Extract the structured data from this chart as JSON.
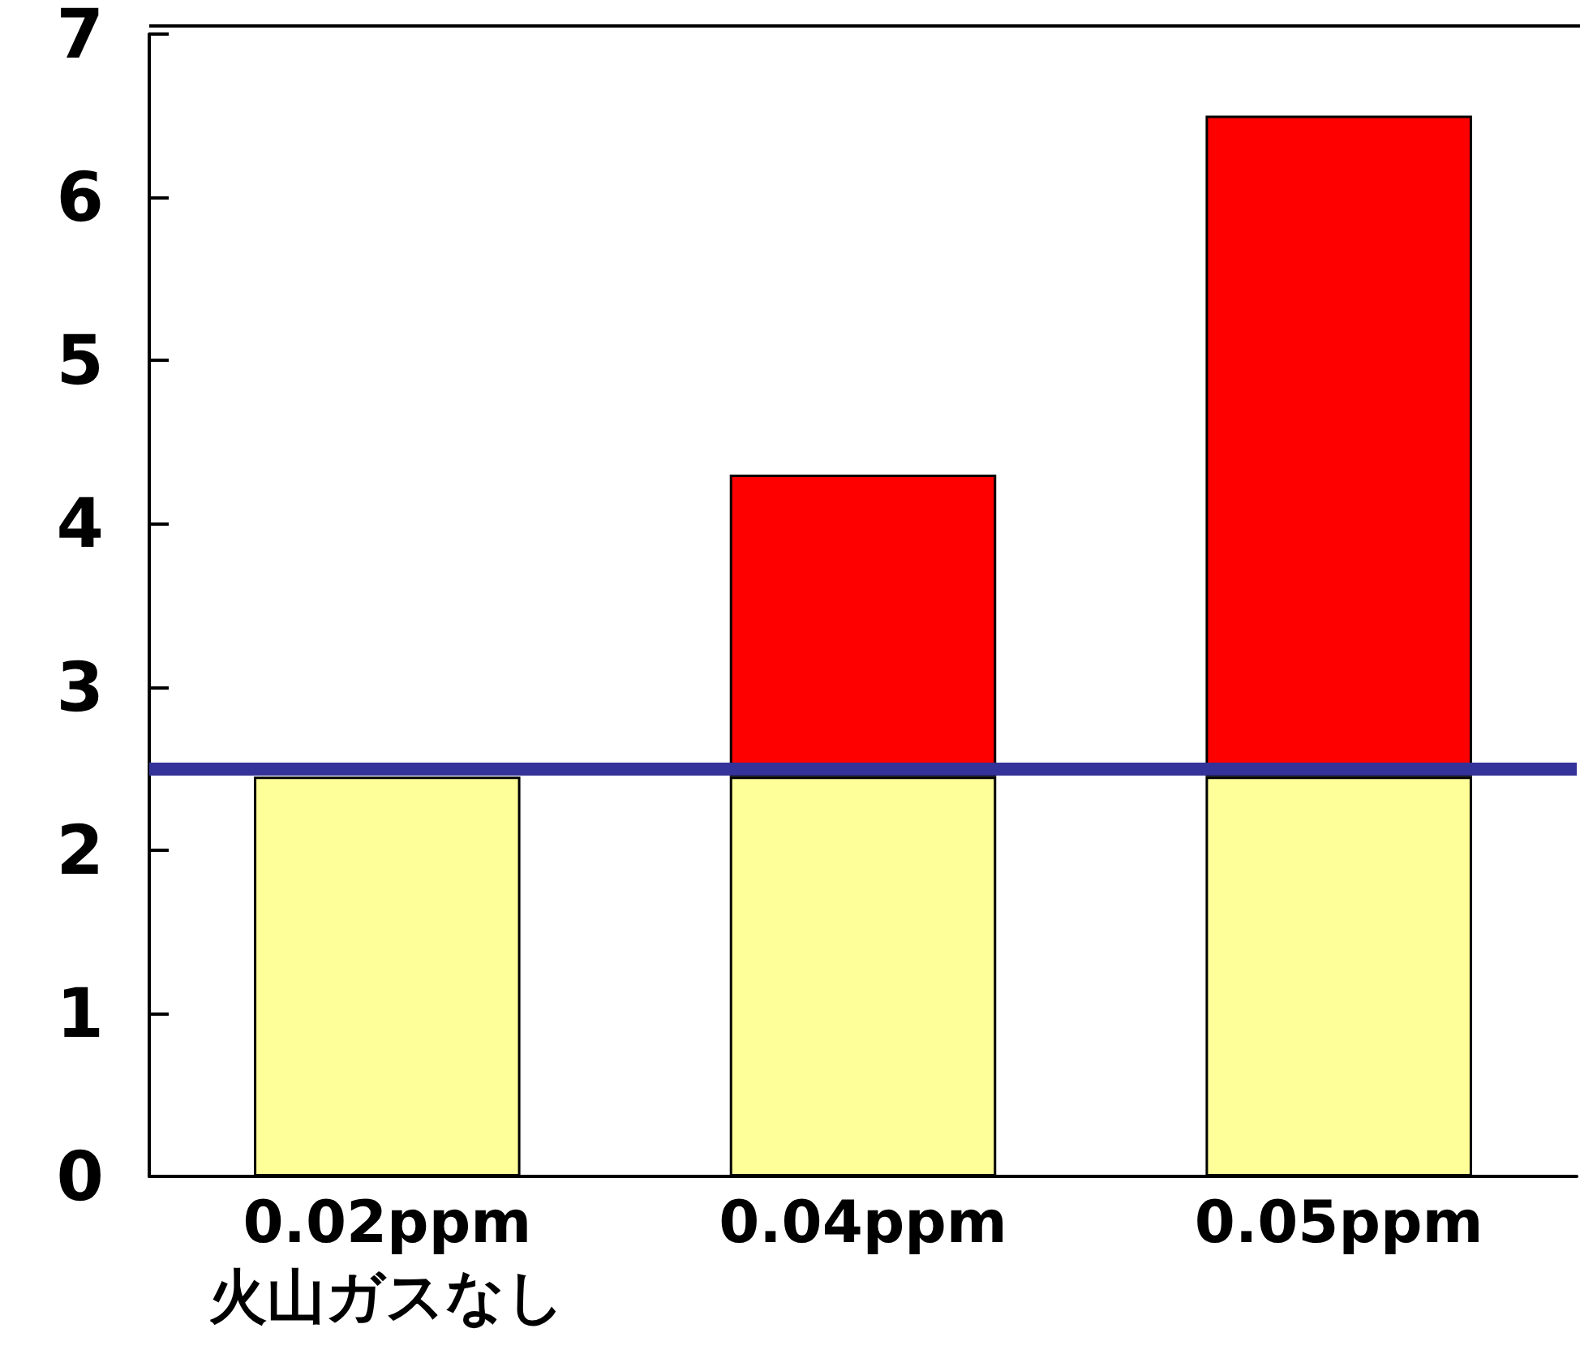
{
  "chart_data": {
    "type": "bar",
    "stacked": true,
    "categories": [
      "0.02ppm\n火山ガスなし",
      "0.04ppm",
      "0.05ppm"
    ],
    "series": [
      {
        "color": "#ffff99",
        "values": [
          2.45,
          2.45,
          2.45
        ]
      },
      {
        "color": "#ff0000",
        "values": [
          null,
          1.85,
          4.05
        ]
      }
    ],
    "ylim": [
      0,
      7
    ],
    "yticks": [
      0,
      1,
      2,
      3,
      4,
      5,
      6,
      7
    ],
    "grid": false,
    "ref_lines": [
      {
        "axis": "y",
        "value": 2.5,
        "color": "#333399"
      }
    ]
  }
}
